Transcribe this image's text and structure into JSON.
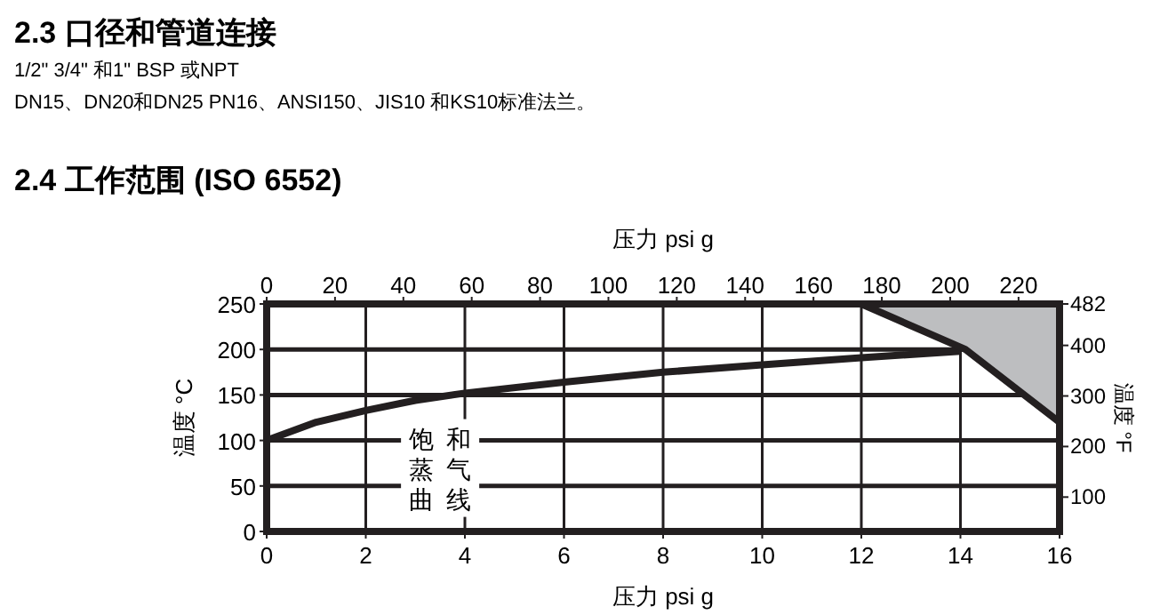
{
  "chart_data": {
    "type": "line",
    "title": "2.4 工作范围 (ISO 6552)",
    "annotations": [
      "2.3 口径和管道连接",
      "1/2\" 3/4\"  和1\" BSP 或NPT",
      "DN15、DN20和DN25 PN16、ANSI150、JIS10 和KS10标准法兰。",
      "饱和蒸气曲线"
    ],
    "xlabel": "压力 psi g",
    "x2label": "压力 psi g",
    "ylabel": "温度 °C",
    "y2label": "温度 °F",
    "series": [
      {
        "color": "#231f20",
        "x": [
          0,
          1,
          2,
          3,
          4,
          6,
          8,
          10,
          12,
          14
        ],
        "values": [
          100,
          120,
          133,
          144,
          152,
          164,
          175,
          183,
          191,
          198
        ]
      },
      {
        "color": "#231f20",
        "x": [
          12,
          14.1,
          16
        ],
        "values": [
          250,
          200,
          120
        ],
        "lower": [
          250,
          200,
          120
        ],
        "upper": [
          250,
          250,
          250
        ]
      }
    ],
    "xlim": [
      0,
      16
    ],
    "xticks": [
      0,
      2,
      4,
      6,
      8,
      10,
      12,
      14,
      16
    ],
    "x2lim": [
      0,
      232
    ],
    "x2ticks": [
      0,
      20,
      40,
      60,
      80,
      100,
      120,
      140,
      160,
      180,
      200,
      220
    ],
    "ylim": [
      0,
      250
    ],
    "yticks": [
      0,
      50,
      100,
      150,
      200,
      250
    ],
    "y2lim": [
      32,
      482
    ],
    "y2ticks": [
      100,
      200,
      300,
      400,
      482
    ],
    "grid": true
  }
}
